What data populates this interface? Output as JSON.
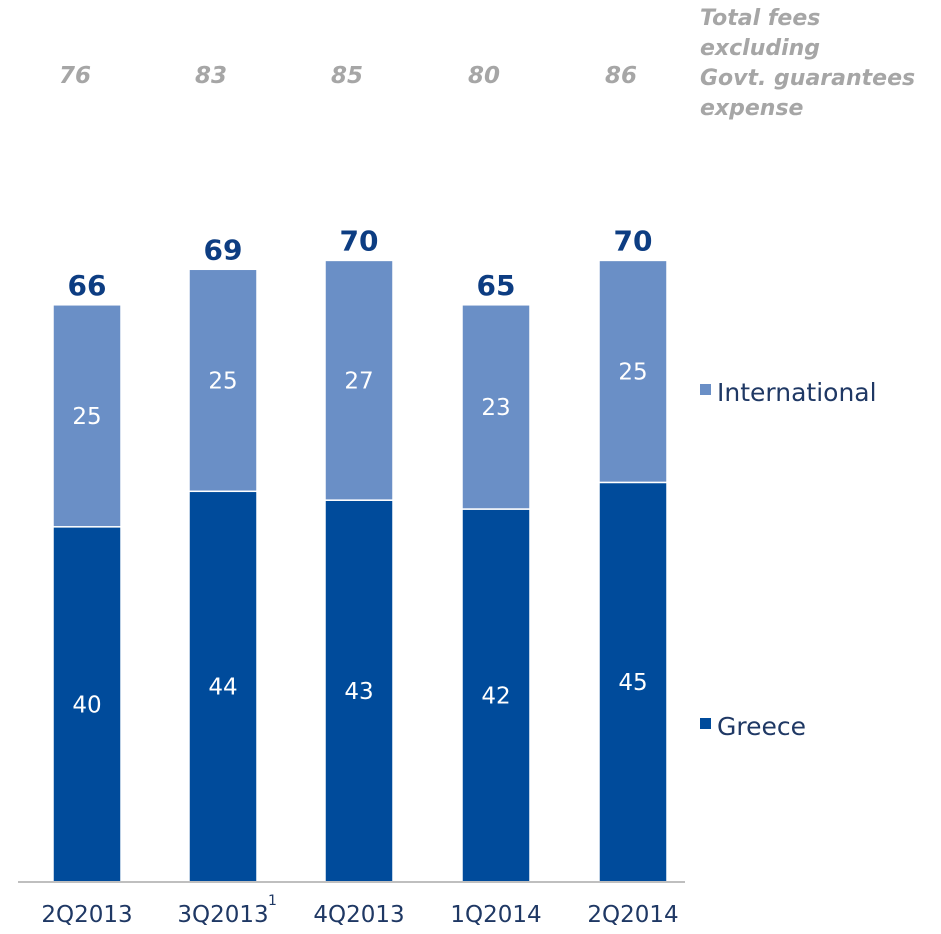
{
  "chart_data": {
    "type": "bar",
    "stacked": true,
    "categories": [
      "2Q2013",
      "3Q2013",
      "4Q2013",
      "1Q2014",
      "2Q2014"
    ],
    "category_footnotes": [
      "",
      "1",
      "",
      "",
      ""
    ],
    "series": [
      {
        "name": "Greece",
        "values": [
          40,
          44,
          43,
          42,
          45
        ],
        "color": "#004b9b"
      },
      {
        "name": "International",
        "values": [
          25,
          25,
          27,
          23,
          25
        ],
        "color": "#6a8fc6"
      }
    ],
    "totals": [
      66,
      69,
      70,
      65,
      70
    ],
    "total_color": "#0d3d82",
    "secondary_totals": {
      "label_lines": [
        "Total fees",
        "excluding",
        "Govt. guarantees",
        "expense"
      ],
      "values": [
        76,
        83,
        85,
        80,
        86
      ],
      "color": "#a6a6a6"
    },
    "ylim": [
      0,
      75
    ],
    "legend_position": "right"
  }
}
